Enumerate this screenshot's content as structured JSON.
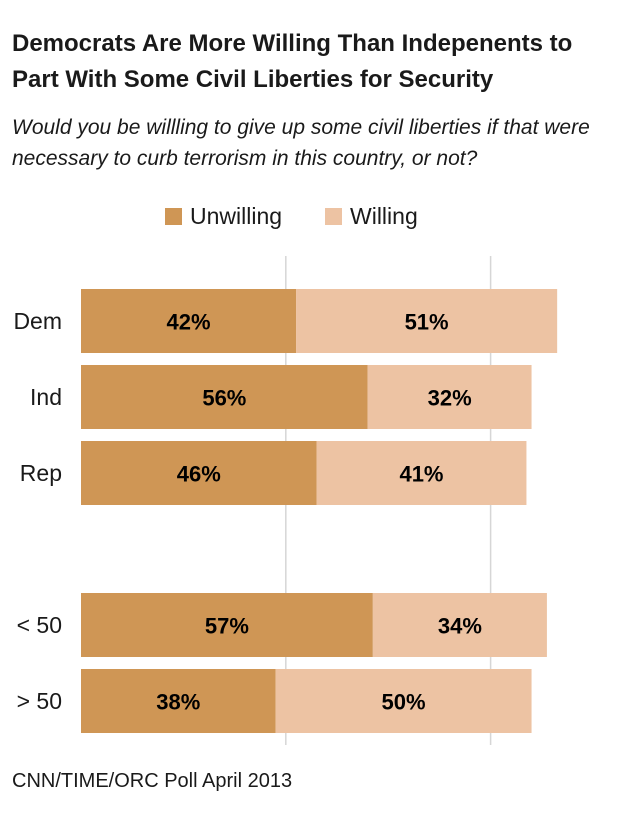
{
  "chart_data": {
    "type": "bar",
    "orientation": "horizontal",
    "stacked": true,
    "title": "Democrats Are More Willing Than Indepenents to Part With Some Civil Liberties for Security",
    "subtitle": "Would you be willling to give up some civil liberties if that were necessary to curb terrorism in this country, or not?",
    "categories": [
      "Dem",
      "Ind",
      "Rep",
      "< 50",
      "> 50"
    ],
    "groups": [
      [
        "Dem",
        "Ind",
        "Rep"
      ],
      [
        "< 50",
        "> 50"
      ]
    ],
    "series": [
      {
        "name": "Unwilling",
        "color": "#CF9655",
        "values": [
          42,
          56,
          46,
          57,
          38
        ],
        "labels": [
          "42%",
          "56%",
          "46%",
          "57%",
          "38%"
        ]
      },
      {
        "name": "Willing",
        "color": "#EDC3A3",
        "values": [
          51,
          32,
          41,
          34,
          50
        ],
        "labels": [
          "51%",
          "32%",
          "41%",
          "34%",
          "50%"
        ]
      }
    ],
    "xlim": [
      0,
      100
    ],
    "grid": true,
    "legend_position": "top"
  },
  "source": "CNN/TIME/ORC Poll April 2013"
}
